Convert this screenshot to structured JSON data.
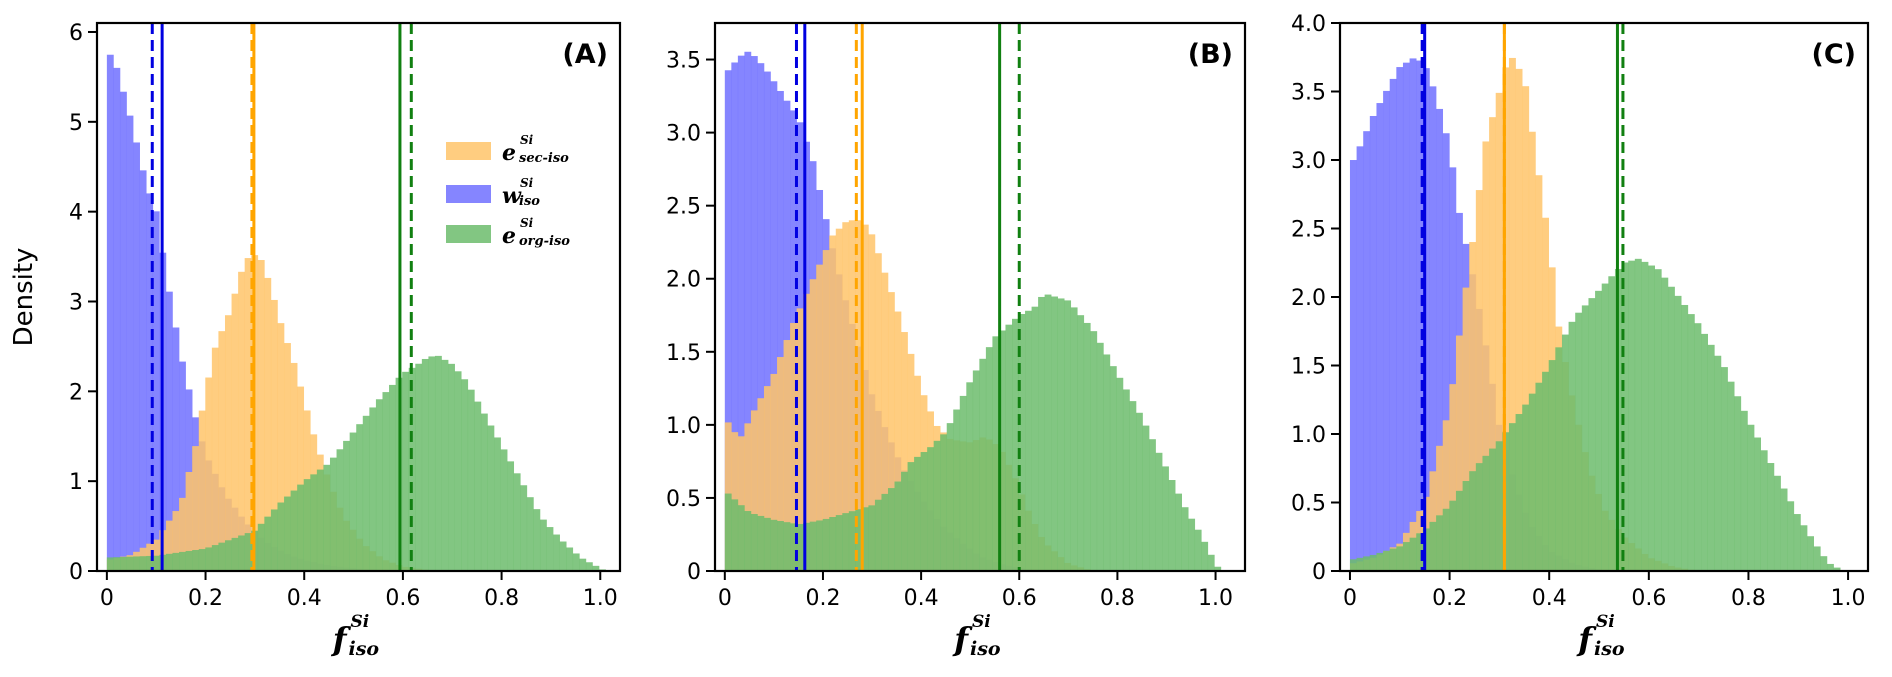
{
  "colors": {
    "blue_fill": "#7070ff",
    "orange_fill": "#ffc46a",
    "green_fill": "#6cbc6c",
    "blue_line": "#0000e0",
    "orange_line": "#ffa500",
    "green_line": "#118011"
  },
  "chart_data": [
    {
      "type": "histogram",
      "panel_label": "(A)",
      "ylabel": "Density",
      "xlabel": {
        "base": "f",
        "sup": "Si",
        "sub": "iso"
      },
      "xlim": [
        -0.02,
        1.04
      ],
      "ylim": [
        0,
        6.1
      ],
      "xticks": [
        0,
        0.2,
        0.4,
        0.6,
        0.8,
        1.0
      ],
      "xtick_labels": [
        "0",
        "0.2",
        "0.4",
        "0.6",
        "0.8",
        "1.0"
      ],
      "yticks": [
        0,
        1,
        2,
        3,
        4,
        5,
        6
      ],
      "ytick_labels": [
        "0",
        "1",
        "2",
        "3",
        "4",
        "5",
        "6"
      ],
      "legend": {
        "position": "center-right",
        "entries": [
          {
            "base": "e",
            "sup": "Si",
            "sub": "sec-iso",
            "color_key": "orange_fill"
          },
          {
            "base": "w",
            "sup": "Si",
            "sub": "iso",
            "color_key": "blue_fill"
          },
          {
            "base": "e",
            "sup": "Si",
            "sub": "org-iso",
            "color_key": "green_fill"
          }
        ]
      },
      "series": [
        {
          "color_key": "blue_fill",
          "curve": [
            [
              0,
              5.82
            ],
            [
              0.02,
              5.6
            ],
            [
              0.05,
              5.0
            ],
            [
              0.08,
              4.3
            ],
            [
              0.1,
              4.0
            ],
            [
              0.12,
              3.3
            ],
            [
              0.15,
              2.4
            ],
            [
              0.18,
              1.7
            ],
            [
              0.2,
              1.3
            ],
            [
              0.24,
              0.85
            ],
            [
              0.28,
              0.55
            ],
            [
              0.32,
              0.33
            ],
            [
              0.36,
              0.2
            ],
            [
              0.4,
              0.12
            ],
            [
              0.45,
              0.06
            ],
            [
              0.5,
              0.03
            ],
            [
              0.55,
              0.01
            ],
            [
              0.6,
              0
            ]
          ]
        },
        {
          "color_key": "orange_fill",
          "curve": [
            [
              0,
              0.12
            ],
            [
              0.05,
              0.18
            ],
            [
              0.1,
              0.35
            ],
            [
              0.15,
              0.75
            ],
            [
              0.18,
              1.4
            ],
            [
              0.2,
              2.0
            ],
            [
              0.22,
              2.5
            ],
            [
              0.25,
              2.9
            ],
            [
              0.27,
              3.3
            ],
            [
              0.29,
              3.53
            ],
            [
              0.31,
              3.5
            ],
            [
              0.33,
              3.2
            ],
            [
              0.35,
              2.8
            ],
            [
              0.38,
              2.3
            ],
            [
              0.4,
              1.9
            ],
            [
              0.42,
              1.5
            ],
            [
              0.45,
              1.0
            ],
            [
              0.48,
              0.6
            ],
            [
              0.52,
              0.3
            ],
            [
              0.56,
              0.13
            ],
            [
              0.6,
              0.05
            ],
            [
              0.65,
              0.01
            ],
            [
              0.7,
              0
            ]
          ]
        },
        {
          "color_key": "green_fill",
          "curve": [
            [
              0,
              0.15
            ],
            [
              0.1,
              0.17
            ],
            [
              0.2,
              0.25
            ],
            [
              0.3,
              0.45
            ],
            [
              0.35,
              0.75
            ],
            [
              0.4,
              1.0
            ],
            [
              0.45,
              1.2
            ],
            [
              0.5,
              1.55
            ],
            [
              0.55,
              1.9
            ],
            [
              0.6,
              2.2
            ],
            [
              0.63,
              2.3
            ],
            [
              0.65,
              2.38
            ],
            [
              0.67,
              2.4
            ],
            [
              0.7,
              2.3
            ],
            [
              0.73,
              2.1
            ],
            [
              0.76,
              1.8
            ],
            [
              0.8,
              1.4
            ],
            [
              0.84,
              1.0
            ],
            [
              0.88,
              0.6
            ],
            [
              0.92,
              0.35
            ],
            [
              0.96,
              0.15
            ],
            [
              1.0,
              0.03
            ],
            [
              1.01,
              0
            ]
          ]
        }
      ],
      "vlines": [
        {
          "x": 0.112,
          "color_key": "blue_line",
          "style": "solid"
        },
        {
          "x": 0.092,
          "color_key": "blue_line",
          "style": "dashed"
        },
        {
          "x": 0.298,
          "color_key": "orange_line",
          "style": "solid"
        },
        {
          "x": 0.294,
          "color_key": "orange_line",
          "style": "dashed"
        },
        {
          "x": 0.594,
          "color_key": "green_line",
          "style": "solid"
        },
        {
          "x": 0.617,
          "color_key": "green_line",
          "style": "dashed"
        }
      ]
    },
    {
      "type": "histogram",
      "panel_label": "(B)",
      "ylabel": "",
      "xlabel": {
        "base": "f",
        "sup": "Si",
        "sub": "iso"
      },
      "xlim": [
        -0.02,
        1.06
      ],
      "ylim": [
        0,
        3.75
      ],
      "xticks": [
        0,
        0.2,
        0.4,
        0.6,
        0.8,
        1.0
      ],
      "xtick_labels": [
        "0",
        "0.2",
        "0.4",
        "0.6",
        "0.8",
        "1.0"
      ],
      "yticks": [
        0,
        0.5,
        1.0,
        1.5,
        2.0,
        2.5,
        3.0,
        3.5
      ],
      "ytick_labels": [
        "0",
        "0.5",
        "1.0",
        "1.5",
        "2.0",
        "2.5",
        "3.0",
        "3.5"
      ],
      "series": [
        {
          "color_key": "blue_fill",
          "curve": [
            [
              0,
              3.4
            ],
            [
              0.03,
              3.52
            ],
            [
              0.05,
              3.56
            ],
            [
              0.08,
              3.45
            ],
            [
              0.1,
              3.35
            ],
            [
              0.12,
              3.25
            ],
            [
              0.15,
              3.1
            ],
            [
              0.18,
              2.8
            ],
            [
              0.2,
              2.5
            ],
            [
              0.22,
              2.2
            ],
            [
              0.25,
              1.8
            ],
            [
              0.28,
              1.45
            ],
            [
              0.3,
              1.2
            ],
            [
              0.33,
              0.95
            ],
            [
              0.36,
              0.72
            ],
            [
              0.4,
              0.5
            ],
            [
              0.44,
              0.32
            ],
            [
              0.48,
              0.2
            ],
            [
              0.52,
              0.1
            ],
            [
              0.56,
              0.05
            ],
            [
              0.6,
              0.02
            ],
            [
              0.65,
              0
            ]
          ]
        },
        {
          "color_key": "orange_fill",
          "curve": [
            [
              0,
              1.05
            ],
            [
              0.03,
              0.9
            ],
            [
              0.06,
              1.1
            ],
            [
              0.1,
              1.35
            ],
            [
              0.14,
              1.7
            ],
            [
              0.18,
              2.0
            ],
            [
              0.2,
              2.15
            ],
            [
              0.22,
              2.3
            ],
            [
              0.25,
              2.4
            ],
            [
              0.28,
              2.4
            ],
            [
              0.3,
              2.3
            ],
            [
              0.33,
              2.0
            ],
            [
              0.36,
              1.7
            ],
            [
              0.4,
              1.25
            ],
            [
              0.43,
              1.0
            ],
            [
              0.46,
              0.9
            ],
            [
              0.5,
              0.88
            ],
            [
              0.53,
              0.92
            ],
            [
              0.56,
              0.85
            ],
            [
              0.59,
              0.65
            ],
            [
              0.62,
              0.4
            ],
            [
              0.65,
              0.2
            ],
            [
              0.7,
              0.05
            ],
            [
              0.75,
              0
            ]
          ]
        },
        {
          "color_key": "green_fill",
          "curve": [
            [
              0,
              0.55
            ],
            [
              0.05,
              0.4
            ],
            [
              0.1,
              0.35
            ],
            [
              0.15,
              0.32
            ],
            [
              0.2,
              0.35
            ],
            [
              0.25,
              0.4
            ],
            [
              0.3,
              0.45
            ],
            [
              0.35,
              0.6
            ],
            [
              0.38,
              0.75
            ],
            [
              0.42,
              0.85
            ],
            [
              0.45,
              0.95
            ],
            [
              0.5,
              1.3
            ],
            [
              0.55,
              1.6
            ],
            [
              0.6,
              1.75
            ],
            [
              0.63,
              1.8
            ],
            [
              0.65,
              1.9
            ],
            [
              0.7,
              1.85
            ],
            [
              0.75,
              1.65
            ],
            [
              0.8,
              1.35
            ],
            [
              0.85,
              1.05
            ],
            [
              0.9,
              0.7
            ],
            [
              0.94,
              0.42
            ],
            [
              0.97,
              0.25
            ],
            [
              1.0,
              0.05
            ],
            [
              1.01,
              0
            ]
          ]
        }
      ],
      "vlines": [
        {
          "x": 0.163,
          "color_key": "blue_line",
          "style": "solid"
        },
        {
          "x": 0.146,
          "color_key": "blue_line",
          "style": "dashed"
        },
        {
          "x": 0.28,
          "color_key": "orange_line",
          "style": "solid"
        },
        {
          "x": 0.268,
          "color_key": "orange_line",
          "style": "dashed"
        },
        {
          "x": 0.56,
          "color_key": "green_line",
          "style": "solid"
        },
        {
          "x": 0.6,
          "color_key": "green_line",
          "style": "dashed"
        }
      ]
    },
    {
      "type": "histogram",
      "panel_label": "(C)",
      "ylabel": "",
      "xlabel": {
        "base": "f",
        "sup": "Si",
        "sub": "iso"
      },
      "xlim": [
        -0.02,
        1.04
      ],
      "ylim": [
        0,
        4.0
      ],
      "xticks": [
        0,
        0.2,
        0.4,
        0.6,
        0.8,
        1.0
      ],
      "xtick_labels": [
        "0",
        "0.2",
        "0.4",
        "0.6",
        "0.8",
        "1.0"
      ],
      "yticks": [
        0,
        0.5,
        1.0,
        1.5,
        2.0,
        2.5,
        3.0,
        3.5,
        4.0
      ],
      "ytick_labels": [
        "0",
        "0.5",
        "1.0",
        "1.5",
        "2.0",
        "2.5",
        "3.0",
        "3.5",
        "4.0"
      ],
      "series": [
        {
          "color_key": "blue_fill",
          "curve": [
            [
              0,
              2.95
            ],
            [
              0.02,
              3.1
            ],
            [
              0.05,
              3.35
            ],
            [
              0.08,
              3.55
            ],
            [
              0.1,
              3.68
            ],
            [
              0.13,
              3.75
            ],
            [
              0.15,
              3.7
            ],
            [
              0.17,
              3.5
            ],
            [
              0.2,
              3.1
            ],
            [
              0.22,
              2.6
            ],
            [
              0.25,
              2.1
            ],
            [
              0.28,
              1.5
            ],
            [
              0.3,
              1.05
            ],
            [
              0.33,
              0.65
            ],
            [
              0.36,
              0.35
            ],
            [
              0.4,
              0.15
            ],
            [
              0.45,
              0.05
            ],
            [
              0.5,
              0.01
            ],
            [
              0.55,
              0
            ]
          ]
        },
        {
          "color_key": "orange_fill",
          "curve": [
            [
              0,
              0.05
            ],
            [
              0.05,
              0.1
            ],
            [
              0.1,
              0.2
            ],
            [
              0.15,
              0.5
            ],
            [
              0.2,
              1.2
            ],
            [
              0.23,
              2.0
            ],
            [
              0.25,
              2.5
            ],
            [
              0.27,
              3.1
            ],
            [
              0.3,
              3.5
            ],
            [
              0.32,
              3.78
            ],
            [
              0.35,
              3.6
            ],
            [
              0.37,
              3.1
            ],
            [
              0.4,
              2.4
            ],
            [
              0.42,
              1.75
            ],
            [
              0.45,
              1.2
            ],
            [
              0.48,
              0.75
            ],
            [
              0.51,
              0.45
            ],
            [
              0.55,
              0.25
            ],
            [
              0.6,
              0.1
            ],
            [
              0.65,
              0.03
            ],
            [
              0.7,
              0
            ]
          ]
        },
        {
          "color_key": "green_fill",
          "curve": [
            [
              0,
              0.08
            ],
            [
              0.05,
              0.12
            ],
            [
              0.1,
              0.18
            ],
            [
              0.15,
              0.3
            ],
            [
              0.2,
              0.48
            ],
            [
              0.25,
              0.75
            ],
            [
              0.3,
              0.95
            ],
            [
              0.35,
              1.2
            ],
            [
              0.4,
              1.5
            ],
            [
              0.45,
              1.85
            ],
            [
              0.5,
              2.05
            ],
            [
              0.55,
              2.25
            ],
            [
              0.58,
              2.28
            ],
            [
              0.62,
              2.2
            ],
            [
              0.65,
              2.05
            ],
            [
              0.7,
              1.8
            ],
            [
              0.75,
              1.5
            ],
            [
              0.8,
              1.1
            ],
            [
              0.85,
              0.75
            ],
            [
              0.9,
              0.4
            ],
            [
              0.93,
              0.22
            ],
            [
              0.96,
              0.06
            ],
            [
              0.98,
              0.02
            ],
            [
              0.99,
              0
            ]
          ]
        }
      ],
      "vlines": [
        {
          "x": 0.15,
          "color_key": "blue_line",
          "style": "solid"
        },
        {
          "x": 0.145,
          "color_key": "blue_line",
          "style": "dashed"
        },
        {
          "x": 0.31,
          "color_key": "orange_line",
          "style": "solid"
        },
        {
          "x": 0.31,
          "color_key": "orange_line",
          "style": "dashed"
        },
        {
          "x": 0.537,
          "color_key": "green_line",
          "style": "solid"
        },
        {
          "x": 0.548,
          "color_key": "green_line",
          "style": "dashed"
        }
      ]
    }
  ]
}
